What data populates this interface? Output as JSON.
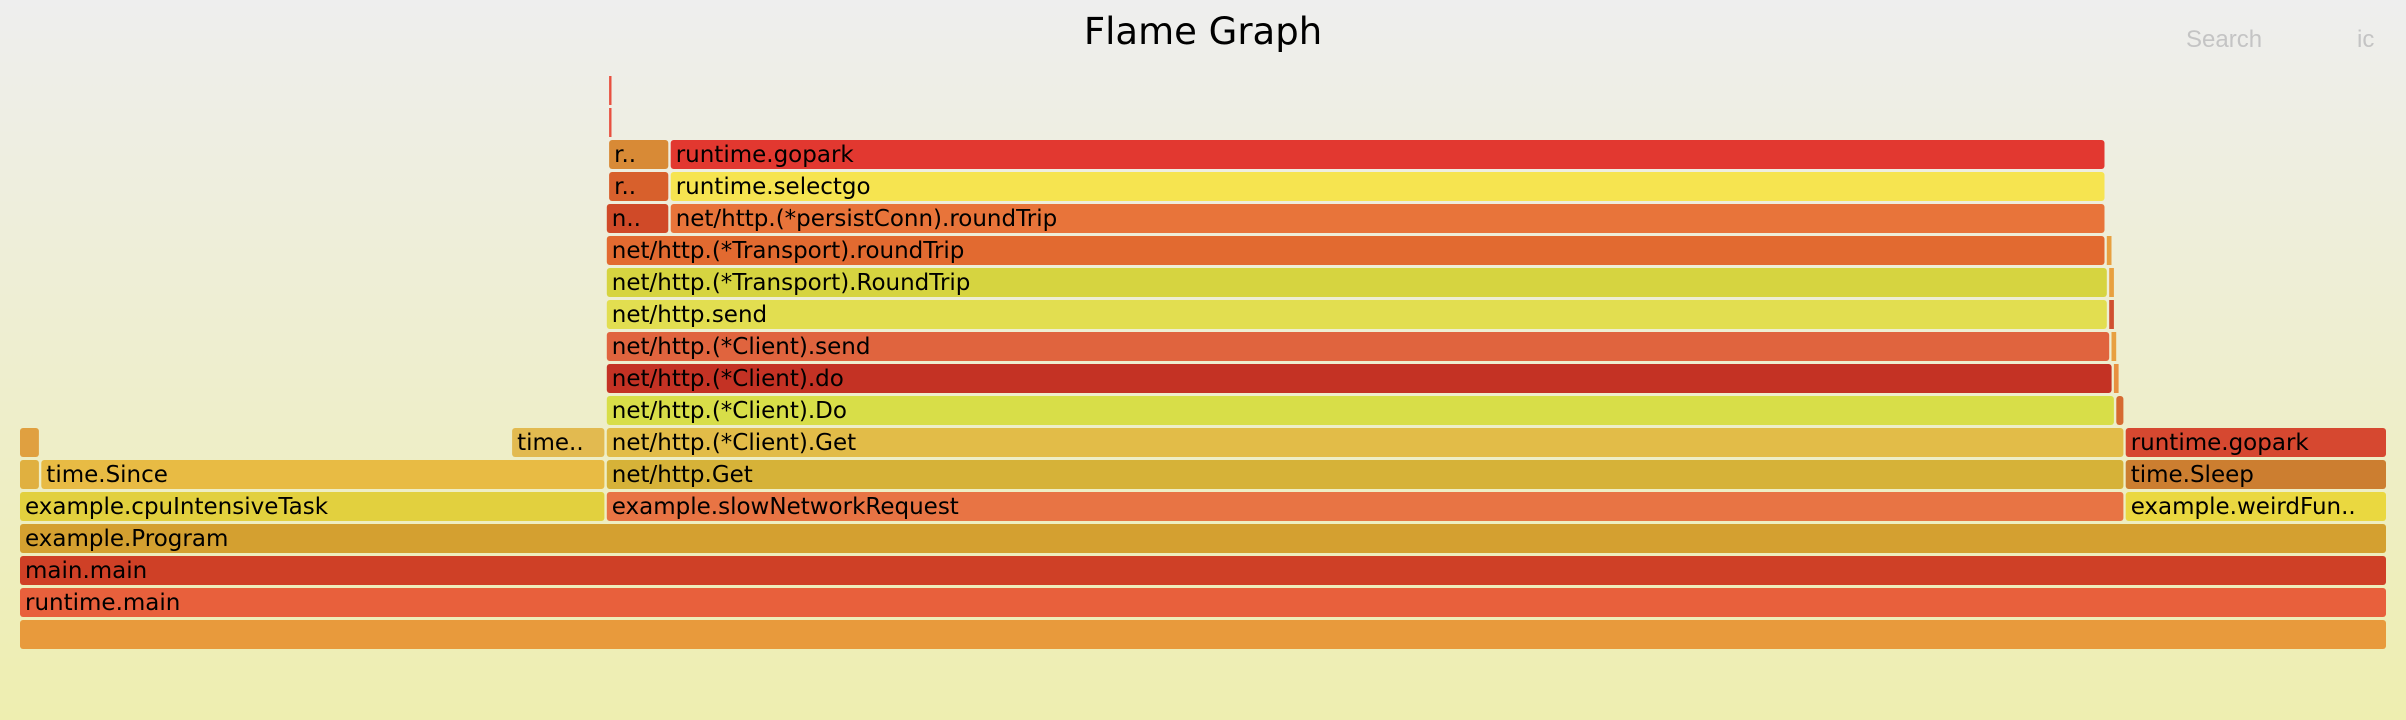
{
  "header": {
    "title": "Flame Graph",
    "search_label": "Search",
    "ic_label": "ic"
  },
  "chart_data": {
    "type": "flamegraph",
    "title": "Flame Graph",
    "unit": "fraction of total samples",
    "total": 1.0,
    "frames": [
      {
        "label": "",
        "depth": 0,
        "start": 0.0,
        "width": 1.0,
        "color": "#e89a3c"
      },
      {
        "label": "runtime.main",
        "depth": 1,
        "start": 0.0,
        "width": 1.0,
        "color": "#e8603c"
      },
      {
        "label": "main.main",
        "depth": 2,
        "start": 0.0,
        "width": 1.0,
        "color": "#cf4026"
      },
      {
        "label": "example.Program",
        "depth": 3,
        "start": 0.0,
        "width": 1.0,
        "color": "#d4a030"
      },
      {
        "label": "example.cpuIntensiveTask",
        "depth": 4,
        "start": 0.0,
        "width": 0.247,
        "color": "#e2d03e"
      },
      {
        "label": "example.slowNetworkRequest",
        "depth": 4,
        "start": 0.248,
        "width": 0.641,
        "color": "#e87444"
      },
      {
        "label": "example.weirdFunction",
        "depth": 4,
        "start": 0.89,
        "width": 0.11,
        "color": "#ead840"
      },
      {
        "label": "",
        "depth": 5,
        "start": 0.0,
        "width": 0.008,
        "color": "#e0b040"
      },
      {
        "label": "time.Since",
        "depth": 5,
        "start": 0.009,
        "width": 0.238,
        "color": "#e8bb44"
      },
      {
        "label": "net/http.Get",
        "depth": 5,
        "start": 0.248,
        "width": 0.641,
        "color": "#d6b238"
      },
      {
        "label": "time.Sleep",
        "depth": 5,
        "start": 0.89,
        "width": 0.11,
        "color": "#cc7e30"
      },
      {
        "label": "",
        "depth": 6,
        "start": 0.0,
        "width": 0.008,
        "color": "#e0a040"
      },
      {
        "label": "time.Now",
        "depth": 6,
        "start": 0.208,
        "width": 0.039,
        "color": "#e2ba50"
      },
      {
        "label": "net/http.(*Client).Get",
        "depth": 6,
        "start": 0.248,
        "width": 0.641,
        "color": "#e2bc48"
      },
      {
        "label": "runtime.gopark",
        "depth": 6,
        "start": 0.89,
        "width": 0.11,
        "color": "#d64830"
      },
      {
        "label": "net/http.(*Client).Do",
        "depth": 7,
        "start": 0.248,
        "width": 0.637,
        "color": "#d8de48"
      },
      {
        "label": "",
        "depth": 7,
        "start": 0.886,
        "width": 0.003,
        "color": "#d66a30"
      },
      {
        "label": "net/http.(*Client).do",
        "depth": 8,
        "start": 0.248,
        "width": 0.636,
        "color": "#c43224"
      },
      {
        "label": "",
        "depth": 8,
        "start": 0.885,
        "width": 0.002,
        "color": "#e89040"
      },
      {
        "label": "net/http.(*Client).send",
        "depth": 9,
        "start": 0.248,
        "width": 0.635,
        "color": "#e0643e"
      },
      {
        "label": "",
        "depth": 9,
        "start": 0.884,
        "width": 0.002,
        "color": "#e8a040"
      },
      {
        "label": "net/http.send",
        "depth": 10,
        "start": 0.248,
        "width": 0.634,
        "color": "#e2de50"
      },
      {
        "label": "",
        "depth": 10,
        "start": 0.883,
        "width": 0.002,
        "color": "#d05030"
      },
      {
        "label": "net/http.(*Transport).RoundTrip",
        "depth": 11,
        "start": 0.248,
        "width": 0.634,
        "color": "#d6d440"
      },
      {
        "label": "",
        "depth": 11,
        "start": 0.883,
        "width": 0.002,
        "color": "#e8a040"
      },
      {
        "label": "net/http.(*Transport).roundTrip",
        "depth": 12,
        "start": 0.248,
        "width": 0.633,
        "color": "#e26a30"
      },
      {
        "label": "",
        "depth": 12,
        "start": 0.882,
        "width": 0.002,
        "color": "#e8a040"
      },
      {
        "label": "net/http.(*Transport).getConn",
        "display": "ne..",
        "depth": 13,
        "start": 0.248,
        "width": 0.026,
        "color": "#d04a28"
      },
      {
        "label": "net/http.(*persistConn).roundTrip",
        "depth": 13,
        "start": 0.275,
        "width": 0.606,
        "color": "#e8743a"
      },
      {
        "label": "runtime.selectgo",
        "display": "r..",
        "depth": 14,
        "start": 0.249,
        "width": 0.025,
        "color": "#d8602c"
      },
      {
        "label": "runtime.selectgo",
        "depth": 14,
        "start": 0.275,
        "width": 0.606,
        "color": "#f6e450"
      },
      {
        "label": "runtime.gopark",
        "display": "r..",
        "depth": 15,
        "start": 0.249,
        "width": 0.025,
        "color": "#d88a36"
      },
      {
        "label": "runtime.gopark",
        "depth": 15,
        "start": 0.275,
        "width": 0.606,
        "color": "#e23830"
      },
      {
        "label": "",
        "depth": 16,
        "start": 0.249,
        "width": 0.001,
        "color": "#e85040"
      },
      {
        "label": "",
        "depth": 17,
        "start": 0.249,
        "width": 0.001,
        "color": "#e85040"
      }
    ]
  }
}
